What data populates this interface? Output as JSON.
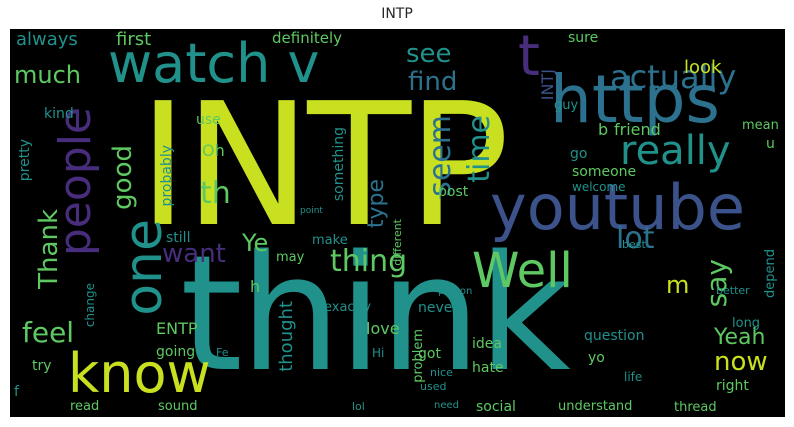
{
  "title": "INTP",
  "colors": {
    "background": "#000000",
    "lime": "#c8e020",
    "green": "#5ec962",
    "teal": "#21918c",
    "blue": "#3b528b",
    "purple": "#472d7b",
    "cyan": "#2c728e"
  },
  "words": [
    "INTP",
    "think",
    "youtube",
    "https",
    "watch v",
    "people",
    "know",
    "one",
    "Well",
    "really",
    "actually",
    "find",
    "see",
    "much",
    "always",
    "first",
    "time",
    "seem",
    "thing",
    "say",
    "lot",
    "want",
    "Thank",
    "feel",
    "good",
    "t",
    "th",
    "Ye",
    "m",
    "now",
    "Yeah",
    "type",
    "friend",
    "look",
    "sure",
    "definitely",
    "INTJ",
    "b",
    "u",
    "mean",
    "someone",
    "welcome",
    "post",
    "never",
    "make",
    "still",
    "probably",
    "something",
    "use",
    "kind",
    "pretty",
    "Oh",
    "h",
    "love",
    "ENTP",
    "thought",
    "going",
    "try",
    "got",
    "hate",
    "idea",
    "question",
    "social",
    "understand",
    "read",
    "sound",
    "thread",
    "may",
    "problem",
    "different",
    "change",
    "yo",
    "right",
    "long",
    "depend",
    "better",
    "best",
    "exactly",
    "guy",
    "go",
    "Hi",
    "f",
    "life",
    "used",
    "need",
    "lol",
    "Fe",
    "nice",
    "person",
    "point"
  ]
}
